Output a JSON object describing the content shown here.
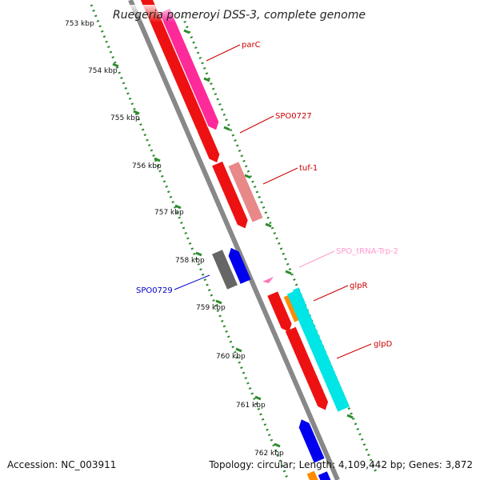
{
  "title": "Ruegeria pomeroyi DSS-3, complete genome",
  "ticks": [
    "753 kbp",
    "754 kbp",
    "755 kbp",
    "756 kbp",
    "757 kbp",
    "758 kbp",
    "759 kbp",
    "760 kbp",
    "761 kbp",
    "762 kbp"
  ],
  "genes": [
    {
      "name": "parC",
      "color": "#cc0000"
    },
    {
      "name": "SPO0727",
      "color": "#cc0000"
    },
    {
      "name": "tuf-1",
      "color": "#cc0000"
    },
    {
      "name": "SPO_tRNA-Trp-2",
      "color": "#ff99cc"
    },
    {
      "name": "SPO0729",
      "color": "#0000cc"
    },
    {
      "name": "glpR",
      "color": "#cc0000"
    },
    {
      "name": "glpD",
      "color": "#cc0000"
    }
  ],
  "colors": {
    "cds_forward": "#ee1111",
    "cds_reverse": "#0000ee",
    "gene_track": "#ff2a9a",
    "tuf_gene": "#e88888",
    "grey_feature": "#666666",
    "cyan_feature": "#00e5e5",
    "orange_feature": "#ff8c00",
    "trna": "#ff77bb",
    "backbone": "#888888",
    "tick_marks": "#2e8b2e"
  },
  "footer": {
    "accession": "Accession: NC_003911",
    "stats": "Topology: circular; Length: 4,109,442 bp; Genes: 3,872"
  }
}
